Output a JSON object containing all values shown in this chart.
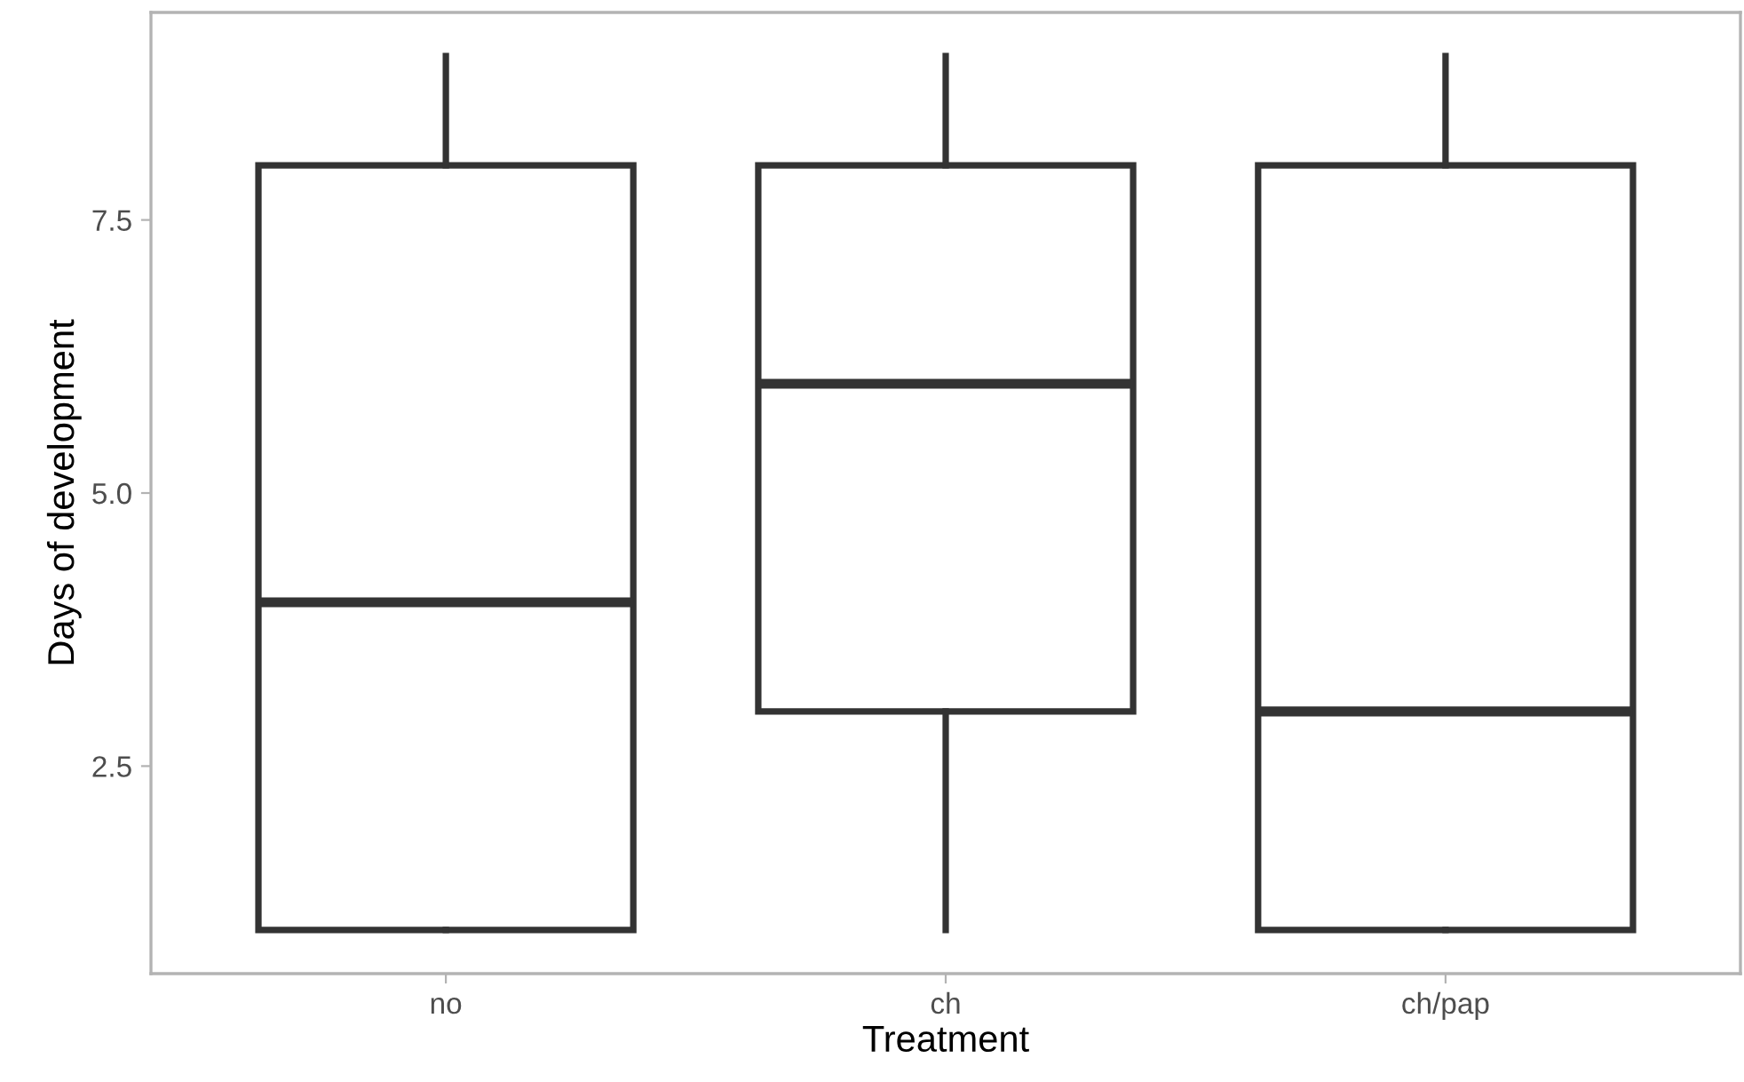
{
  "chart_data": {
    "type": "box",
    "xlabel": "Treatment",
    "ylabel": "Days of development",
    "categories": [
      "no",
      "ch",
      "ch/pap"
    ],
    "boxes": [
      {
        "low": 1,
        "q1": 1,
        "median": 4,
        "q3": 8,
        "high": 9
      },
      {
        "low": 1,
        "q1": 3,
        "median": 6,
        "q3": 8,
        "high": 9
      },
      {
        "low": 1,
        "q1": 1,
        "median": 3,
        "q3": 8,
        "high": 9
      }
    ],
    "color": "#333333",
    "ylim": [
      0.6,
      9.4
    ],
    "yticks": [
      2.5,
      {
        "value": 5,
        "label": "5.0"
      },
      7.5
    ],
    "grid": false
  }
}
